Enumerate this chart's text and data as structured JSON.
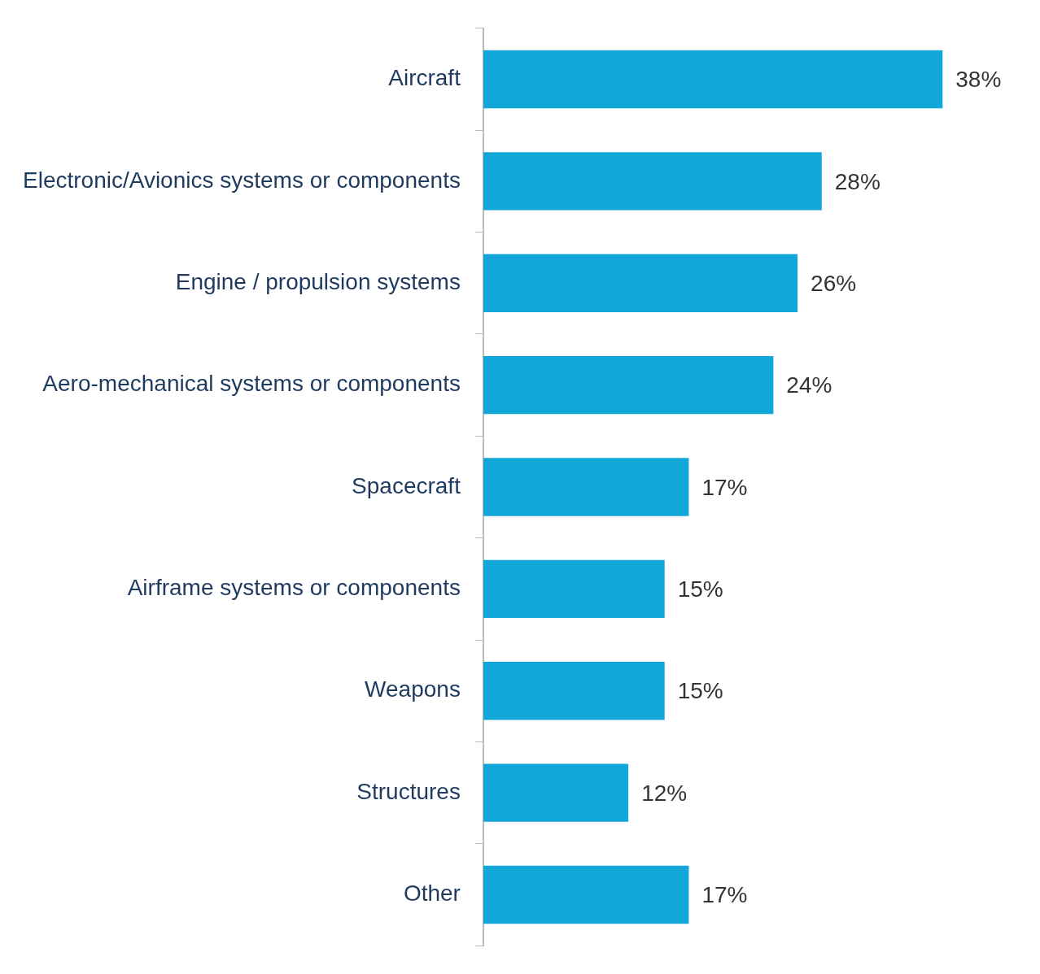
{
  "chart_data": {
    "type": "bar",
    "orientation": "horizontal",
    "categories": [
      "Aircraft",
      "Electronic/Avionics systems or components",
      "Engine / propulsion systems",
      "Aero-mechanical systems or components",
      "Spacecraft",
      "Airframe systems or components",
      "Weapons",
      "Structures",
      "Other"
    ],
    "values": [
      38,
      28,
      26,
      24,
      17,
      15,
      15,
      12,
      17
    ],
    "color": "#13a6d8",
    "data_labels": true,
    "value_labels": [
      "38%",
      "28%",
      "26%",
      "24%",
      "17%",
      "15%",
      "15%",
      "12%",
      "17%"
    ],
    "tick_labels": "y",
    "legend": false
  }
}
